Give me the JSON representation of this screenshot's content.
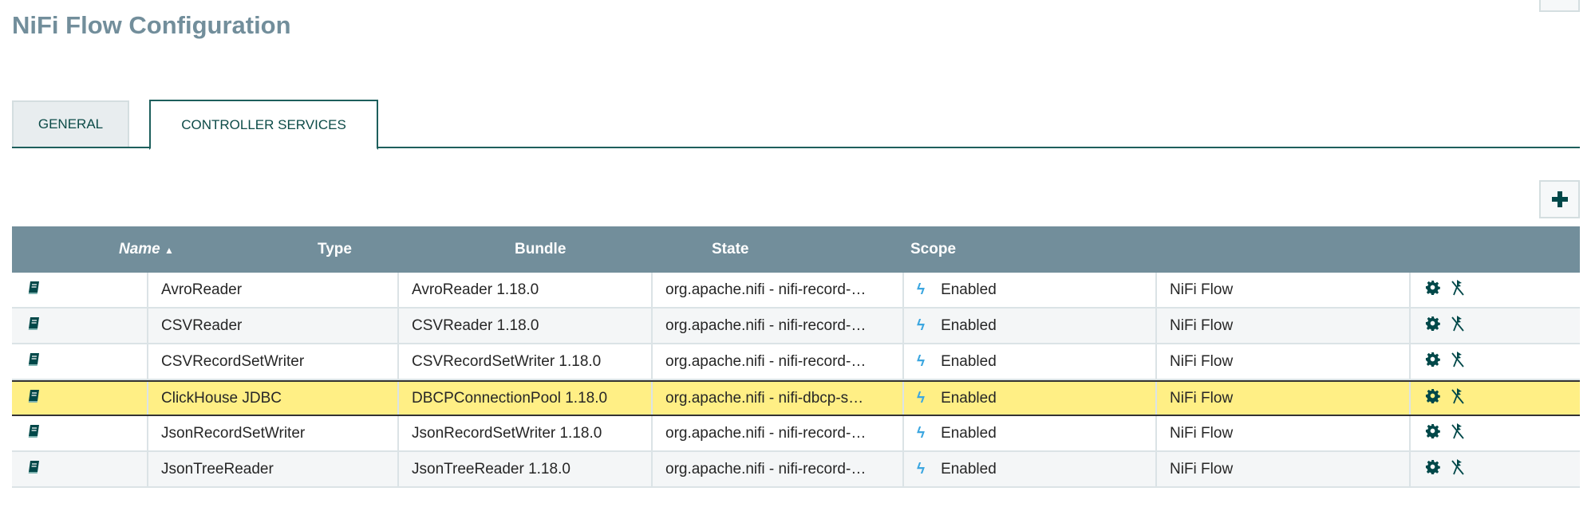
{
  "header": {
    "title": "NiFi Flow Configuration"
  },
  "tabs": [
    {
      "label": "GENERAL",
      "active": false
    },
    {
      "label": "CONTROLLER SERVICES",
      "active": true
    }
  ],
  "table": {
    "columns": [
      "Name",
      "Type",
      "Bundle",
      "State",
      "Scope"
    ],
    "sort": {
      "column": "Name",
      "direction": "ascending"
    },
    "rows": [
      {
        "name": "AvroReader",
        "type": "AvroReader 1.18.0",
        "bundle": "org.apache.nifi - nifi-record-…",
        "state": "Enabled",
        "scope": "NiFi Flow"
      },
      {
        "name": "CSVReader",
        "type": "CSVReader 1.18.0",
        "bundle": "org.apache.nifi - nifi-record-…",
        "state": "Enabled",
        "scope": "NiFi Flow"
      },
      {
        "name": "CSVRecordSetWriter",
        "type": "CSVRecordSetWriter 1.18.0",
        "bundle": "org.apache.nifi - nifi-record-…",
        "state": "Enabled",
        "scope": "NiFi Flow"
      },
      {
        "name": "ClickHouse JDBC",
        "type": "DBCPConnectionPool 1.18.0",
        "bundle": "org.apache.nifi - nifi-dbcp-s…",
        "state": "Enabled",
        "scope": "NiFi Flow",
        "selected": true
      },
      {
        "name": "JsonRecordSetWriter",
        "type": "JsonRecordSetWriter 1.18.0",
        "bundle": "org.apache.nifi - nifi-record-…",
        "state": "Enabled",
        "scope": "NiFi Flow"
      },
      {
        "name": "JsonTreeReader",
        "type": "JsonTreeReader 1.18.0",
        "bundle": "org.apache.nifi - nifi-record-…",
        "state": "Enabled",
        "scope": "NiFi Flow"
      }
    ]
  },
  "colors": {
    "header_bg": "#728e9b",
    "accent": "#004849",
    "selected_row": "#ffef85",
    "enabled_icon": "#3ba6e0"
  },
  "icons": {
    "row": "book-icon",
    "state": "bolt-icon",
    "actions": [
      "gear-icon",
      "disable-icon"
    ],
    "add": "plus-icon"
  }
}
